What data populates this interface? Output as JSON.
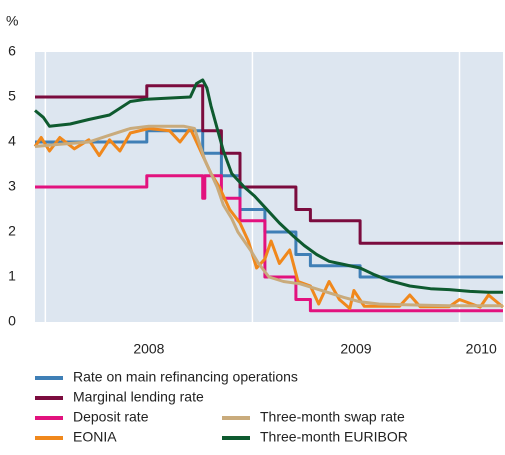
{
  "chart_data": {
    "type": "line",
    "y_label": "%",
    "xlim": [
      2007.95,
      2010.21
    ],
    "xticks": [
      2008,
      2009,
      2010
    ],
    "ylim": [
      0,
      6
    ],
    "yticks": [
      0,
      1,
      2,
      3,
      4,
      5,
      6
    ],
    "grid": "x",
    "series": [
      {
        "name": "Rate on main refinancing operations",
        "color": "#3f7fb6",
        "x": [
          2007.95,
          2008.49,
          2008.49,
          2008.76,
          2008.76,
          2008.85,
          2008.85,
          2008.94,
          2008.94,
          2009.06,
          2009.06,
          2009.21,
          2009.21,
          2009.28,
          2009.28,
          2009.52,
          2009.52,
          2010.21
        ],
        "values": [
          4,
          4,
          4.25,
          4.25,
          3.75,
          3.75,
          3.25,
          3.25,
          2.5,
          2.5,
          2,
          2,
          1.5,
          1.5,
          1.25,
          1.25,
          1,
          1
        ]
      },
      {
        "name": "Marginal lending rate",
        "color": "#7b0c3e",
        "x": [
          2007.95,
          2008.49,
          2008.49,
          2008.76,
          2008.76,
          2008.85,
          2008.85,
          2008.94,
          2008.94,
          2009.21,
          2009.21,
          2009.28,
          2009.28,
          2009.52,
          2009.52,
          2010.21
        ],
        "values": [
          5,
          5,
          5.25,
          5.25,
          4.25,
          4.25,
          3.75,
          3.75,
          3,
          3,
          2.5,
          2.5,
          2.25,
          2.25,
          1.75,
          1.75
        ]
      },
      {
        "name": "Deposit rate",
        "color": "#e2127e",
        "x": [
          2007.95,
          2008.49,
          2008.49,
          2008.76,
          2008.76,
          2008.77,
          2008.77,
          2008.85,
          2008.85,
          2008.94,
          2008.94,
          2009.06,
          2009.06,
          2009.21,
          2009.21,
          2009.28,
          2009.28,
          2010.21
        ],
        "values": [
          3,
          3,
          3.25,
          3.25,
          2.75,
          2.75,
          3.25,
          3.25,
          2.75,
          2.75,
          2.25,
          2.25,
          1,
          1,
          0.5,
          0.5,
          0.25,
          0.25
        ]
      },
      {
        "name": "EONIA",
        "color": "#f0881c",
        "x": [
          2007.95,
          2007.98,
          2008.02,
          2008.07,
          2008.14,
          2008.21,
          2008.26,
          2008.31,
          2008.36,
          2008.41,
          2008.5,
          2008.6,
          2008.65,
          2008.7,
          2008.74,
          2008.77,
          2008.8,
          2008.84,
          2008.89,
          2008.94,
          2008.98,
          2009.02,
          2009.06,
          2009.09,
          2009.13,
          2009.18,
          2009.22,
          2009.28,
          2009.32,
          2009.37,
          2009.42,
          2009.47,
          2009.49,
          2009.54,
          2009.71,
          2009.76,
          2009.81,
          2009.95,
          2010.0,
          2010.1,
          2010.14,
          2010.21
        ],
        "values": [
          3.9,
          4.1,
          3.8,
          4.1,
          3.85,
          4.05,
          3.7,
          4.05,
          3.8,
          4.2,
          4.3,
          4.25,
          4.0,
          4.3,
          3.9,
          3.6,
          3.3,
          3.0,
          2.5,
          2.2,
          1.8,
          1.2,
          1.4,
          1.8,
          1.3,
          1.6,
          0.9,
          0.8,
          0.4,
          0.9,
          0.5,
          0.3,
          0.7,
          0.35,
          0.35,
          0.6,
          0.34,
          0.34,
          0.5,
          0.33,
          0.6,
          0.33
        ]
      },
      {
        "name": "Three-month swap rate",
        "color": "#c9ab7c",
        "x": [
          2007.95,
          2008.07,
          2008.21,
          2008.31,
          2008.41,
          2008.5,
          2008.67,
          2008.72,
          2008.77,
          2008.79,
          2008.83,
          2008.86,
          2008.9,
          2008.93,
          2008.99,
          2009.03,
          2009.08,
          2009.15,
          2009.23,
          2009.3,
          2009.37,
          2009.44,
          2009.52,
          2009.61,
          2009.76,
          2009.95,
          2010.21
        ],
        "values": [
          3.9,
          3.95,
          4.0,
          4.15,
          4.3,
          4.35,
          4.35,
          4.3,
          3.6,
          3.4,
          3.0,
          2.6,
          2.3,
          2.0,
          1.6,
          1.3,
          1.0,
          0.9,
          0.85,
          0.75,
          0.65,
          0.55,
          0.45,
          0.4,
          0.38,
          0.36,
          0.36
        ]
      },
      {
        "name": "Three-month EURIBOR",
        "color": "#0e5a2f",
        "x": [
          2007.95,
          2007.99,
          2008.02,
          2008.12,
          2008.21,
          2008.31,
          2008.41,
          2008.49,
          2008.57,
          2008.7,
          2008.73,
          2008.76,
          2008.78,
          2008.8,
          2008.83,
          2008.86,
          2008.9,
          2008.96,
          2009.01,
          2009.06,
          2009.13,
          2009.2,
          2009.25,
          2009.31,
          2009.37,
          2009.44,
          2009.52,
          2009.59,
          2009.66,
          2009.76,
          2009.86,
          2009.95,
          2010.05,
          2010.14,
          2010.21
        ],
        "values": [
          4.7,
          4.55,
          4.35,
          4.4,
          4.5,
          4.6,
          4.9,
          4.95,
          4.97,
          5.0,
          5.3,
          5.38,
          5.2,
          4.8,
          4.3,
          3.8,
          3.3,
          3.0,
          2.8,
          2.55,
          2.2,
          1.9,
          1.7,
          1.5,
          1.35,
          1.28,
          1.2,
          1.05,
          0.92,
          0.8,
          0.74,
          0.72,
          0.68,
          0.66,
          0.66
        ]
      }
    ]
  }
}
